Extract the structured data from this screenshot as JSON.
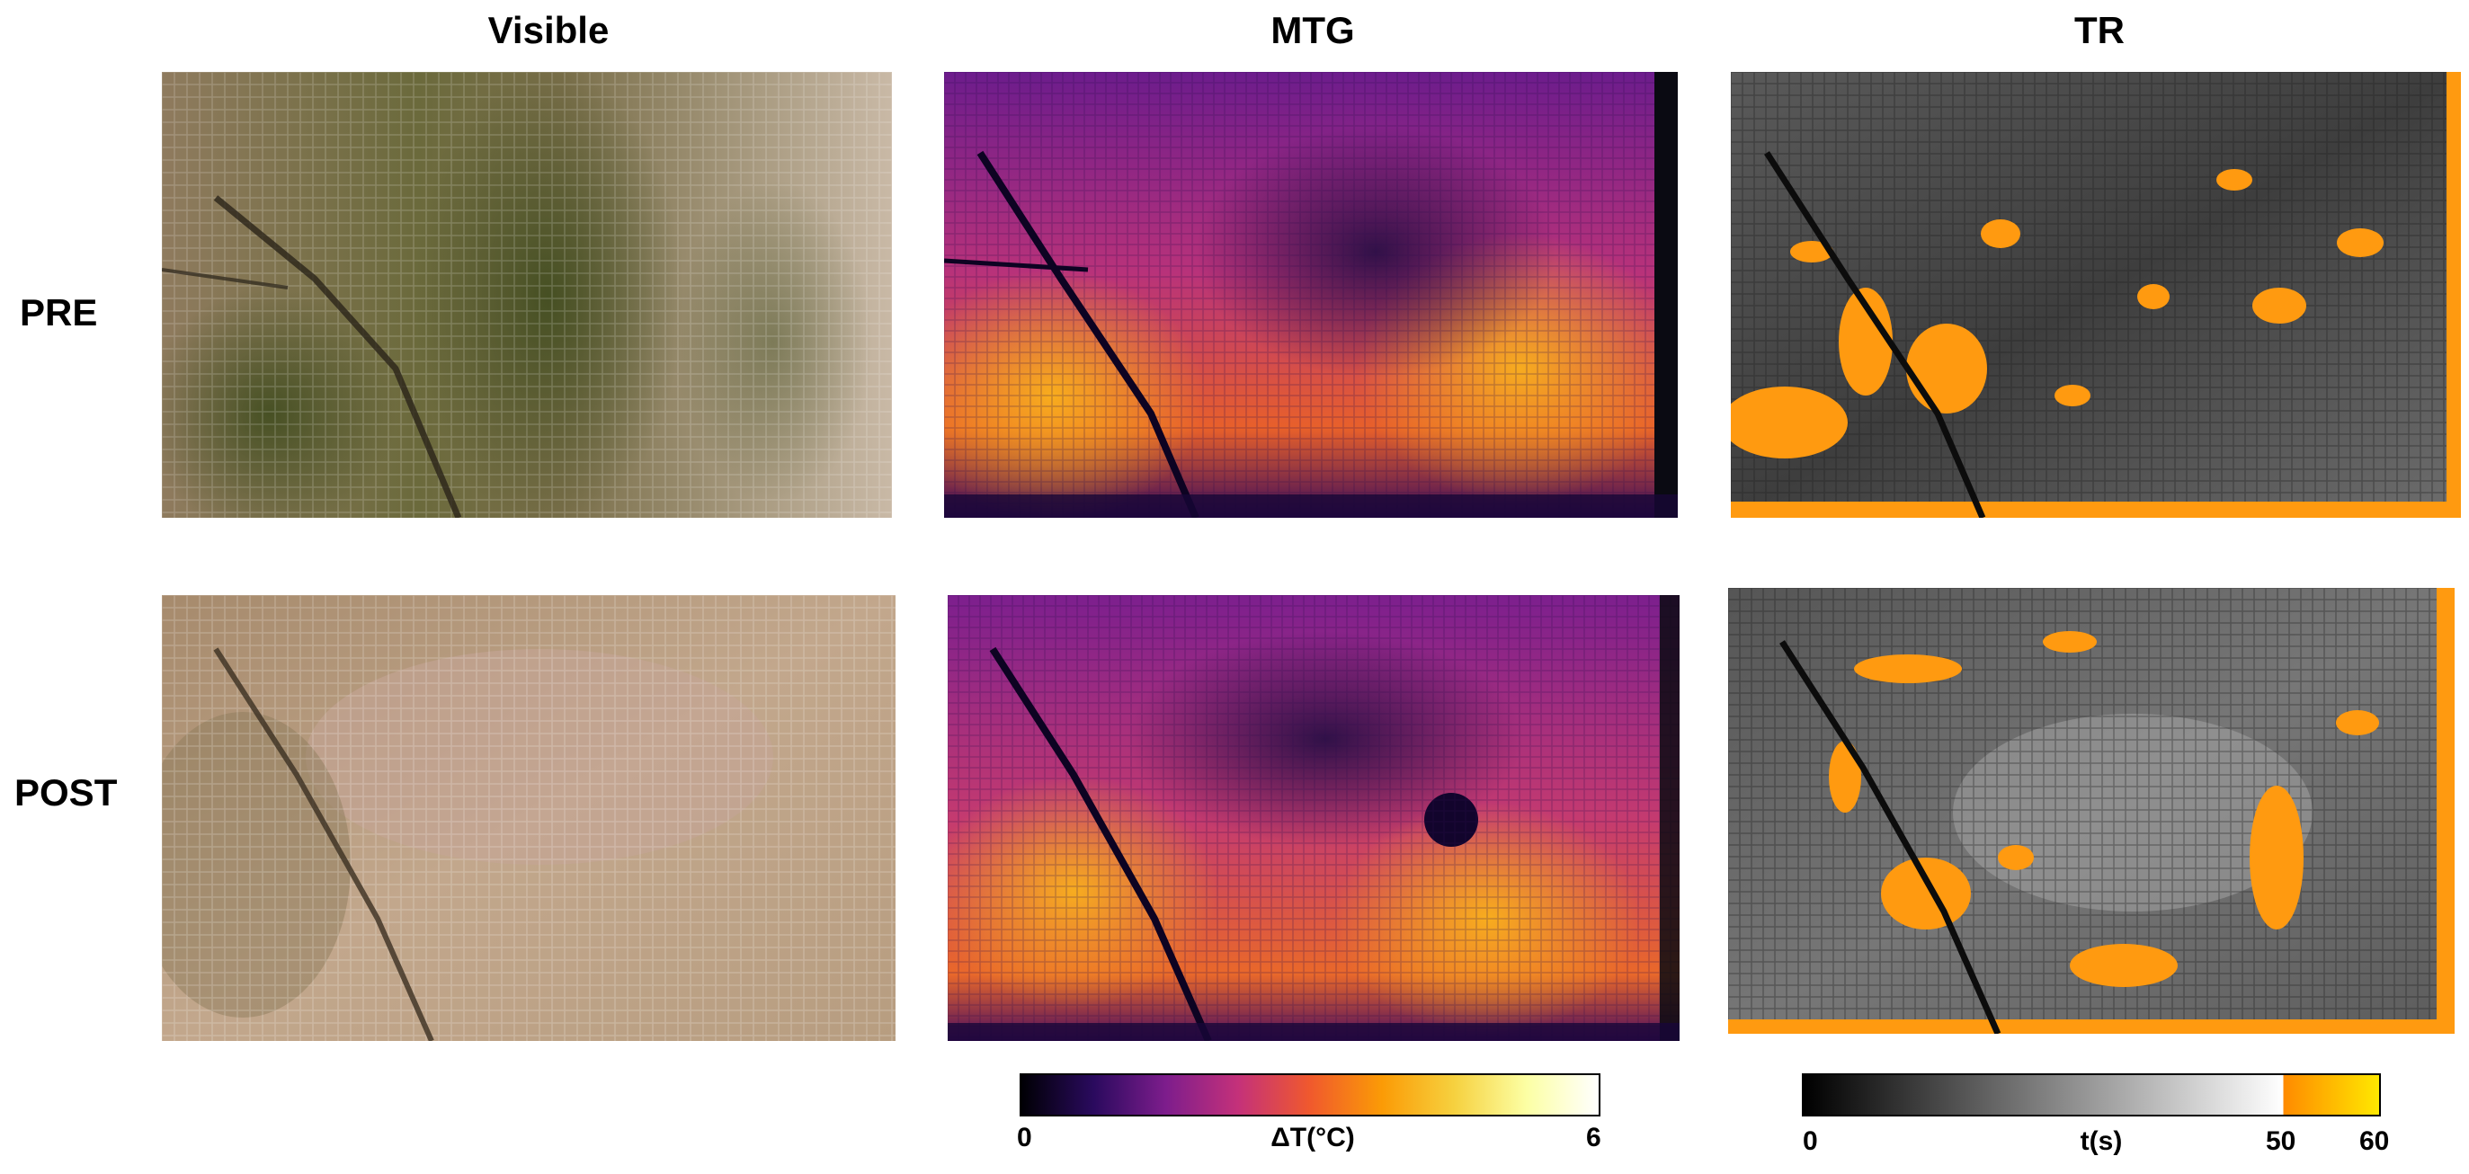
{
  "columns": {
    "visible": "Visible",
    "mtg": "MTG",
    "tr": "TR"
  },
  "rows": {
    "pre": "PRE",
    "post": "POST"
  },
  "panels": [
    {
      "row": "PRE",
      "column": "Visible",
      "content": "photograph-mosaic-wall"
    },
    {
      "row": "PRE",
      "column": "MTG",
      "content": "thermal-map-inferno"
    },
    {
      "row": "PRE",
      "column": "TR",
      "content": "thermal-map-gray-orange"
    },
    {
      "row": "POST",
      "column": "Visible",
      "content": "photograph-mosaic-wall"
    },
    {
      "row": "POST",
      "column": "MTG",
      "content": "thermal-map-inferno"
    },
    {
      "row": "POST",
      "column": "TR",
      "content": "thermal-map-gray-orange"
    }
  ],
  "colorbars": {
    "mtg": {
      "label": "ΔT(°C)",
      "min_label": "0",
      "max_label": "6",
      "colors": [
        "#000004",
        "#2a0a5e",
        "#7d1d8c",
        "#c4317a",
        "#f0592d",
        "#fb9b06",
        "#f6d13f",
        "#fcffa4",
        "#ffffff"
      ]
    },
    "tr": {
      "label": "t(s)",
      "ticks": [
        "0",
        "50",
        "60"
      ],
      "gray_colors": [
        "#000000",
        "#ffffff"
      ],
      "hot_colors": [
        "#ff8a00",
        "#ffe800"
      ]
    }
  }
}
